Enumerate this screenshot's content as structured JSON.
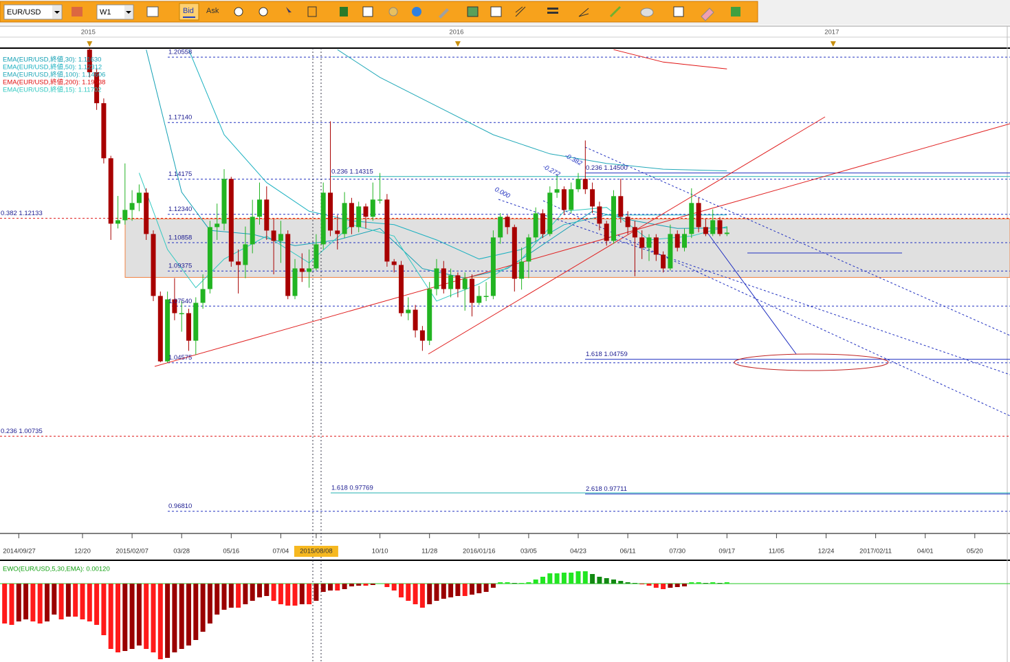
{
  "toolbar": {
    "symbol": "EUR/USD",
    "timeframe": "W1",
    "bid": "Bid",
    "ask": "Ask"
  },
  "chart_data": [
    {
      "type": "candlestick",
      "x": [
        1,
        2,
        3,
        4,
        5,
        6,
        7,
        8,
        9,
        10,
        11,
        12,
        13,
        14,
        15,
        16,
        17,
        18,
        19,
        20,
        21,
        22,
        23,
        24,
        25,
        26,
        27,
        28,
        29,
        30,
        31,
        32,
        33,
        34,
        35,
        36,
        37,
        38,
        39,
        40,
        41,
        42,
        43,
        44,
        45,
        46,
        47,
        48,
        49,
        50,
        51,
        52,
        53,
        54,
        55,
        56,
        57,
        58,
        59,
        60,
        61,
        62,
        63,
        64,
        65,
        66,
        67,
        68,
        69,
        70,
        71,
        72,
        73,
        74,
        75,
        76,
        77,
        78,
        79,
        80,
        81,
        82,
        83,
        84,
        85,
        86,
        87,
        88,
        89,
        90,
        91
      ],
      "open": [
        1.2095,
        1.1977,
        1.1815,
        1.1527,
        1.1185,
        1.1203,
        1.1257,
        1.1293,
        1.1347,
        1.1131,
        1.0807,
        1.0465,
        1.0789,
        1.0717,
        1.0717,
        1.0573,
        1.0771,
        1.0843,
        1.1167,
        1.1185,
        1.1419,
        1.0987,
        1.0969,
        1.1077,
        1.1221,
        1.1311,
        1.1149,
        1.1095,
        1.1131,
        1.0807,
        1.0951,
        1.0933,
        1.0951,
        1.1077,
        1.1347,
        1.1149,
        1.1131,
        1.1293,
        1.1167,
        1.1275,
        1.1221,
        1.1311,
        1.1311,
        1.0987,
        1.0969,
        1.0717,
        1.0735,
        1.0627,
        1.0573,
        1.0843,
        1.0951,
        1.0843,
        1.0915,
        1.0843,
        1.0897,
        1.0771,
        1.0807,
        1.0807,
        1.1113,
        1.1221,
        1.1167,
        1.0897,
        1.0987,
        1.1113,
        1.1239,
        1.1131,
        1.1347,
        1.1365,
        1.1257,
        1.1365,
        1.1419,
        1.1365,
        1.1275,
        1.1185,
        1.1095,
        1.1329,
        1.1221,
        1.1167,
        1.1113,
        1.1059,
        1.1113,
        1.1023,
        1.0951,
        1.1131,
        1.1059,
        1.1131,
        1.1293,
        1.1167,
        1.1131,
        1.1203,
        1.1131
      ],
      "high": [
        1.21,
        1.2,
        1.184,
        1.154,
        1.133,
        1.15,
        1.136,
        1.139,
        1.137,
        1.115,
        1.083,
        1.083,
        1.09,
        1.078,
        1.074,
        1.08,
        1.092,
        1.12,
        1.129,
        1.147,
        1.143,
        1.105,
        1.117,
        1.131,
        1.14,
        1.138,
        1.121,
        1.12,
        1.115,
        1.1,
        1.103,
        1.105,
        1.113,
        1.14,
        1.172,
        1.123,
        1.135,
        1.132,
        1.13,
        1.129,
        1.14,
        1.145,
        1.134,
        1.1,
        1.099,
        1.08,
        1.076,
        1.065,
        1.088,
        1.1,
        1.099,
        1.095,
        1.093,
        1.093,
        1.092,
        1.086,
        1.088,
        1.115,
        1.124,
        1.123,
        1.118,
        1.106,
        1.113,
        1.127,
        1.126,
        1.138,
        1.144,
        1.138,
        1.14,
        1.145,
        1.162,
        1.14,
        1.13,
        1.12,
        1.136,
        1.142,
        1.125,
        1.12,
        1.115,
        1.113,
        1.113,
        1.104,
        1.118,
        1.115,
        1.116,
        1.137,
        1.132,
        1.121,
        1.126,
        1.122,
        1.117
      ],
      "low": [
        1.195,
        1.178,
        1.15,
        1.11,
        1.116,
        1.118,
        1.12,
        1.125,
        1.11,
        1.078,
        1.046,
        1.0458,
        1.068,
        1.062,
        1.052,
        1.05,
        1.074,
        1.082,
        1.11,
        1.115,
        1.096,
        1.082,
        1.09,
        1.103,
        1.118,
        1.11,
        1.092,
        1.098,
        1.079,
        1.079,
        1.088,
        1.085,
        1.094,
        1.105,
        1.112,
        1.105,
        1.111,
        1.113,
        1.114,
        1.116,
        1.12,
        1.129,
        1.096,
        1.093,
        1.07,
        1.068,
        1.059,
        1.052,
        1.055,
        1.081,
        1.082,
        1.08,
        1.08,
        1.073,
        1.07,
        1.076,
        1.078,
        1.079,
        1.108,
        1.113,
        1.083,
        1.084,
        1.09,
        1.109,
        1.111,
        1.112,
        1.132,
        1.123,
        1.124,
        1.135,
        1.134,
        1.124,
        1.115,
        1.107,
        1.108,
        1.119,
        1.113,
        1.091,
        1.1,
        1.099,
        1.099,
        1.093,
        1.094,
        1.104,
        1.104,
        1.111,
        1.114,
        1.112,
        1.112,
        1.112,
        1.112
      ],
      "close": [
        1.1977,
        1.1815,
        1.1527,
        1.1185,
        1.1203,
        1.1257,
        1.1293,
        1.1347,
        1.1131,
        1.0807,
        1.0465,
        1.0789,
        1.0717,
        1.0717,
        1.0573,
        1.0771,
        1.0843,
        1.1167,
        1.1185,
        1.1419,
        1.0987,
        1.0969,
        1.1077,
        1.1221,
        1.1311,
        1.1149,
        1.1095,
        1.1131,
        1.0807,
        1.0951,
        1.0933,
        1.0951,
        1.1077,
        1.1347,
        1.1149,
        1.1131,
        1.1293,
        1.1167,
        1.1275,
        1.1221,
        1.1311,
        1.1311,
        1.0987,
        1.0969,
        1.0717,
        1.0735,
        1.0627,
        1.0573,
        1.0843,
        1.0951,
        1.0843,
        1.0915,
        1.0843,
        1.0897,
        1.0771,
        1.0807,
        1.0807,
        1.1113,
        1.1221,
        1.1167,
        1.0897,
        1.0987,
        1.1113,
        1.1239,
        1.1131,
        1.1347,
        1.1365,
        1.1257,
        1.1365,
        1.1419,
        1.1365,
        1.1275,
        1.1185,
        1.1095,
        1.1329,
        1.1221,
        1.1167,
        1.1113,
        1.1059,
        1.1113,
        1.1023,
        1.0951,
        1.1131,
        1.1059,
        1.1131,
        1.1293,
        1.1167,
        1.1131,
        1.1203,
        1.1131,
        1.1138
      ],
      "up_color": "#22b422",
      "down_color": "#a80000",
      "xlim": [
        -11.65,
        130.97
      ],
      "ylim": [
        0.9565,
        1.2103
      ],
      "xticks": [
        {
          "value": -9,
          "label": "2014/09/27"
        },
        {
          "value": 0,
          "label": "12/20"
        },
        {
          "value": 7,
          "label": "2015/02/07"
        },
        {
          "value": 14,
          "label": "03/28"
        },
        {
          "value": 21,
          "label": "05/16"
        },
        {
          "value": 28,
          "label": "07/04"
        },
        {
          "value": 33,
          "label": "2015/08/08"
        },
        {
          "value": 42,
          "label": "10/10"
        },
        {
          "value": 49,
          "label": "11/28"
        },
        {
          "value": 56,
          "label": "2016/01/16"
        },
        {
          "value": 63,
          "label": "03/05"
        },
        {
          "value": 70,
          "label": "04/23"
        },
        {
          "value": 77,
          "label": "06/11"
        },
        {
          "value": 84,
          "label": "07/30"
        },
        {
          "value": 91,
          "label": "09/17"
        },
        {
          "value": 98,
          "label": "11/05"
        },
        {
          "value": 105,
          "label": "12/24"
        },
        {
          "value": 112,
          "label": "2017/02/11"
        },
        {
          "value": 119,
          "label": "04/01"
        },
        {
          "value": 126,
          "label": "05/20"
        }
      ],
      "year_ticks": [
        {
          "value": 1,
          "label": "2015"
        },
        {
          "value": 53,
          "label": "2016"
        },
        {
          "value": 106,
          "label": "2017"
        }
      ],
      "series": [
        {
          "name": "EMA(EUR/USD,終値,30): 1.11630",
          "color": "#12a0b4",
          "x": [
            9,
            14,
            18,
            24,
            30,
            36,
            42,
            48,
            54,
            60,
            66,
            72,
            78,
            84,
            91
          ],
          "values": [
            1.2095,
            1.135,
            1.115,
            1.113,
            1.107,
            1.11,
            1.116,
            1.095,
            1.09,
            1.095,
            1.11,
            1.125,
            1.12,
            1.116,
            1.1163
          ]
        },
        {
          "name": "EMA(EUR/USD,終値,50): 1.12312",
          "color": "#19b0c0",
          "x": [
            15,
            20,
            26,
            32,
            38,
            44,
            50,
            56,
            62,
            68,
            74,
            80,
            86,
            91
          ],
          "values": [
            1.2095,
            1.165,
            1.14,
            1.125,
            1.12,
            1.118,
            1.11,
            1.1,
            1.105,
            1.118,
            1.123,
            1.123,
            1.123,
            1.1231
          ]
        },
        {
          "name": "EMA(EUR/USD,終値,100): 1.14606",
          "color": "#20a8b8",
          "x": [
            36,
            42,
            50,
            58,
            66,
            74,
            82,
            91
          ],
          "values": [
            1.2095,
            1.195,
            1.18,
            1.165,
            1.155,
            1.15,
            1.147,
            1.1461
          ]
        },
        {
          "name": "EMA(EUR/USD,終値,200): 1.19938",
          "color": "#e01010",
          "x": [
            75,
            82,
            91
          ],
          "values": [
            1.2095,
            1.203,
            1.1994
          ]
        },
        {
          "name": "EMA(EUR/USD,終値,15): 1.11702",
          "color": "#30c8c0",
          "x": [
            8,
            12,
            16,
            20,
            26,
            32,
            38,
            44,
            50,
            56,
            62,
            68,
            74,
            80,
            86,
            91
          ],
          "values": [
            1.145,
            1.105,
            1.085,
            1.1,
            1.112,
            1.098,
            1.118,
            1.112,
            1.078,
            1.087,
            1.1,
            1.125,
            1.127,
            1.11,
            1.112,
            1.117
          ]
        }
      ],
      "zone": [
        1.0904,
        1.121
      ],
      "zone_color": "#e0e0e0",
      "zone_border": "#f08040",
      "levels": [
        {
          "value": 1.20558,
          "label": "1.20558"
        },
        {
          "value": 1.1714,
          "label": "1.17140"
        },
        {
          "value": 1.14175,
          "label": "1.14175"
        },
        {
          "value": 1.1234,
          "label": "1.12340"
        },
        {
          "value": 1.10858,
          "label": "1.10858"
        },
        {
          "value": 1.09375,
          "label": "1.09375"
        },
        {
          "value": 1.0754,
          "label": "1.07540"
        },
        {
          "value": 1.04575,
          "label": "1.04575"
        },
        {
          "value": 1.12133,
          "label": "0.382 1.12133"
        },
        {
          "value": 1.00735,
          "label": "0.236 1.00735"
        },
        {
          "value": 0.9681,
          "label": "0.96810"
        },
        {
          "value": 1.14315,
          "label": "0.236 1.14315"
        },
        {
          "value": 0.97769,
          "label": "1.618 0.97769"
        },
        {
          "value": 1.145,
          "label": "0.236 1.14500"
        },
        {
          "value": 1.04759,
          "label": "1.618 1.04759"
        },
        {
          "value": 0.97711,
          "label": "2.618 0.97711"
        }
      ],
      "annotations": [
        "0.000",
        "-0.272",
        "-0.382"
      ]
    },
    {
      "type": "histogram-oscillator",
      "title": "EWO(EUR/USD,5,30,EMA): 0.00120",
      "x": [
        -11,
        -10,
        -9,
        -8,
        -7,
        -6,
        -5,
        -4,
        -3,
        -2,
        -1,
        0,
        1,
        2,
        3,
        4,
        5,
        6,
        7,
        8,
        9,
        10,
        11,
        12,
        13,
        14,
        15,
        16,
        17,
        18,
        19,
        20,
        21,
        22,
        23,
        24,
        25,
        26,
        27,
        28,
        29,
        30,
        31,
        32,
        33,
        34,
        35,
        36,
        37,
        38,
        39,
        40,
        41,
        42,
        43,
        44,
        45,
        46,
        47,
        48,
        49,
        50,
        51,
        52,
        53,
        54,
        55,
        56,
        57,
        58,
        59,
        60,
        61,
        62,
        63,
        64,
        65,
        66,
        67,
        68,
        69,
        70,
        71,
        72,
        73,
        74,
        75,
        76,
        77,
        78,
        79,
        80,
        81,
        82,
        83,
        84,
        85,
        86,
        87,
        88,
        89,
        90,
        91
      ],
      "values": [
        -0.0348,
        -0.036,
        -0.033,
        -0.0312,
        -0.033,
        -0.0348,
        -0.033,
        -0.027,
        -0.0312,
        -0.0288,
        -0.0288,
        -0.0312,
        -0.033,
        -0.036,
        -0.045,
        -0.057,
        -0.06,
        -0.0588,
        -0.057,
        -0.054,
        -0.057,
        -0.06,
        -0.066,
        -0.0648,
        -0.06,
        -0.057,
        -0.054,
        -0.0492,
        -0.042,
        -0.0348,
        -0.027,
        -0.0228,
        -0.021,
        -0.021,
        -0.018,
        -0.015,
        -0.012,
        -0.0108,
        -0.015,
        -0.018,
        -0.0192,
        -0.0192,
        -0.018,
        -0.018,
        -0.015,
        -0.0072,
        -0.006,
        -0.006,
        -0.0048,
        -0.0024,
        -0.0018,
        -0.0018,
        -0.0012,
        0,
        -0.003,
        -0.006,
        -0.012,
        -0.015,
        -0.018,
        -0.021,
        -0.018,
        -0.015,
        -0.0132,
        -0.012,
        -0.0108,
        -0.0108,
        -0.0096,
        -0.0084,
        -0.0072,
        -0.0036,
        0.0012,
        0.0012,
        0.0006,
        0.0006,
        0.0012,
        0.0036,
        0.006,
        0.009,
        0.009,
        0.0096,
        0.0096,
        0.0108,
        0.0108,
        0.0084,
        0.006,
        0.0048,
        0.0036,
        0.0024,
        0.0012,
        0.0006,
        -0.0006,
        -0.0018,
        -0.0036,
        -0.0048,
        -0.0036,
        -0.003,
        -0.0024,
        0.0012,
        0.0012,
        0.0006,
        0.0012,
        0.0006,
        0.0012
      ],
      "colors": {
        "pos_rising": "#22e622",
        "pos_falling": "#128a12",
        "neg_falling": "#ff1a1a",
        "neg_rising": "#9a0000"
      },
      "zero_color": "#22c822",
      "title_color": "#10a010",
      "xlim": [
        -11.65,
        130.97
      ],
      "ylim": [
        -0.0678,
        0.0162
      ]
    }
  ]
}
